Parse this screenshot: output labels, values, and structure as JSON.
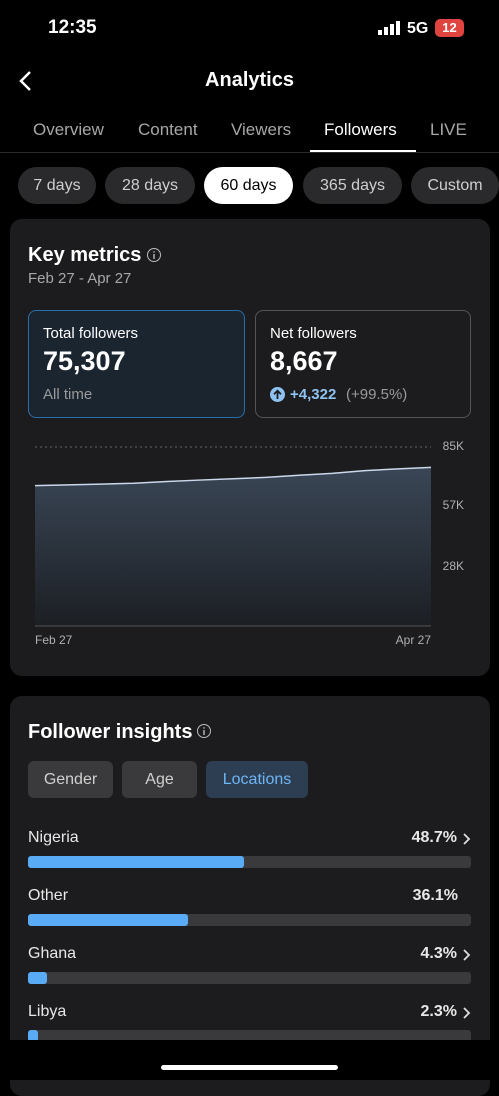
{
  "status_bar": {
    "time": "12:35",
    "network": "5G",
    "battery": "12"
  },
  "header": {
    "title": "Analytics"
  },
  "tabs": [
    "Overview",
    "Content",
    "Viewers",
    "Followers",
    "LIVE"
  ],
  "active_tab": 3,
  "ranges": [
    "7 days",
    "28 days",
    "60 days",
    "365 days",
    "Custom"
  ],
  "active_range": 2,
  "key_metrics": {
    "title": "Key metrics",
    "date_range": "Feb 27 - Apr 27",
    "total": {
      "label": "Total followers",
      "value": "75,307",
      "note": "All time"
    },
    "net": {
      "label": "Net followers",
      "value": "8,667",
      "change": "+4,322",
      "change_pct": "(+99.5%)"
    }
  },
  "chart_data": {
    "type": "area",
    "categories": [
      "Feb 27",
      null,
      null,
      null,
      null,
      null,
      null,
      null,
      null,
      null,
      null,
      null,
      "Apr 27"
    ],
    "values": [
      66640,
      67000,
      67400,
      67800,
      68600,
      69300,
      69900,
      70600,
      71600,
      72500,
      73800,
      74600,
      75307
    ],
    "color": "#c9d8ea",
    "ylim": [
      0,
      85000
    ],
    "yticks": [
      {
        "value": 28000,
        "label": "28K"
      },
      {
        "value": 57000,
        "label": "57K"
      },
      {
        "value": 85000,
        "label": "85K"
      }
    ],
    "grid": true
  },
  "insights": {
    "title": "Follower insights",
    "filters": [
      "Gender",
      "Age",
      "Locations"
    ],
    "active_filter": 2,
    "locations": [
      {
        "name": "Nigeria",
        "value": 48.7,
        "label": "48.7%",
        "chevron": true
      },
      {
        "name": "Other",
        "value": 36.1,
        "label": "36.1%",
        "chevron": false
      },
      {
        "name": "Ghana",
        "value": 4.3,
        "label": "4.3%",
        "chevron": true
      },
      {
        "name": "Libya",
        "value": 2.3,
        "label": "2.3%",
        "chevron": true
      }
    ]
  }
}
